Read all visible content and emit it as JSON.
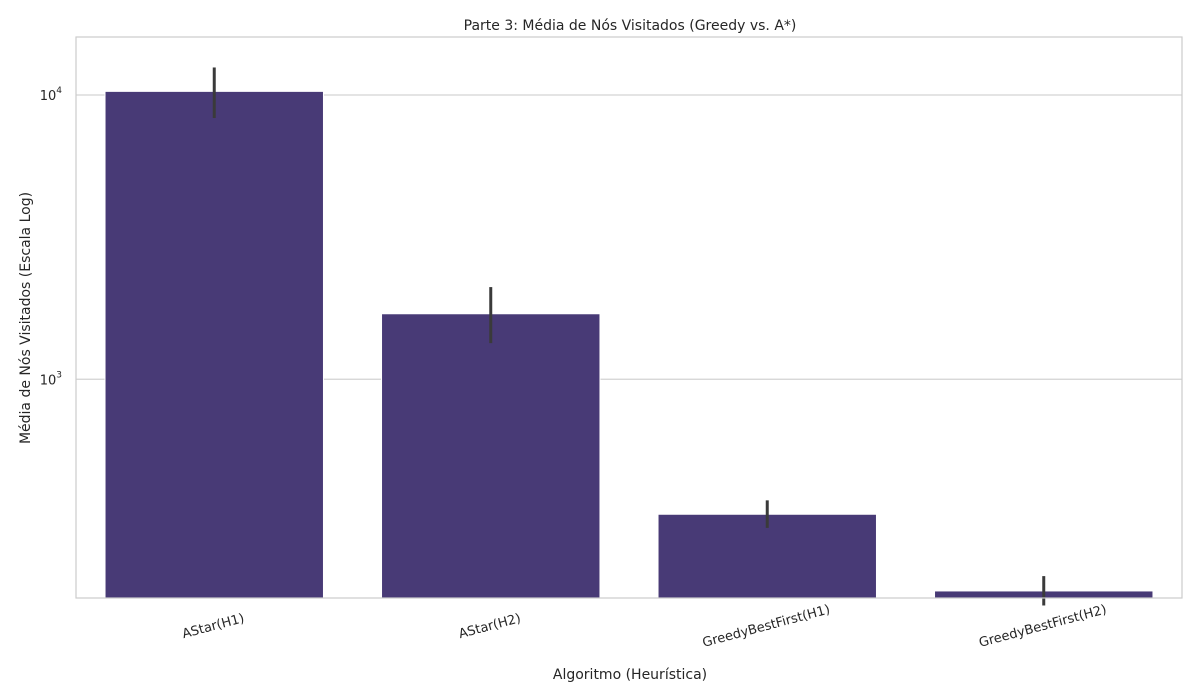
{
  "chart_data": {
    "type": "bar",
    "title": "Parte 3: Média de Nós Visitados (Greedy vs. A*)",
    "xlabel": "Algoritmo (Heurística)",
    "ylabel": "Média de Nós Visitados (Escala Log)",
    "yscale": "log",
    "ylim": [
      170,
      16000
    ],
    "yticks": [
      {
        "value": 1000,
        "base": "10",
        "exp": "3"
      },
      {
        "value": 10000,
        "base": "10",
        "exp": "4"
      }
    ],
    "grid": "horizontal",
    "categories": [
      "AStar(H1)",
      "AStar(H2)",
      "GreedyBestFirst(H1)",
      "GreedyBestFirst(H2)"
    ],
    "values": [
      10300,
      1700,
      335,
      180
    ],
    "error_low": [
      8300,
      1340,
      300,
      160
    ],
    "error_high": [
      12500,
      2110,
      375,
      203
    ],
    "colors": {
      "bar": "#483a76",
      "error": "#3a3a3a",
      "grid": "#d3d3d3",
      "axes": "#cccccc"
    }
  }
}
